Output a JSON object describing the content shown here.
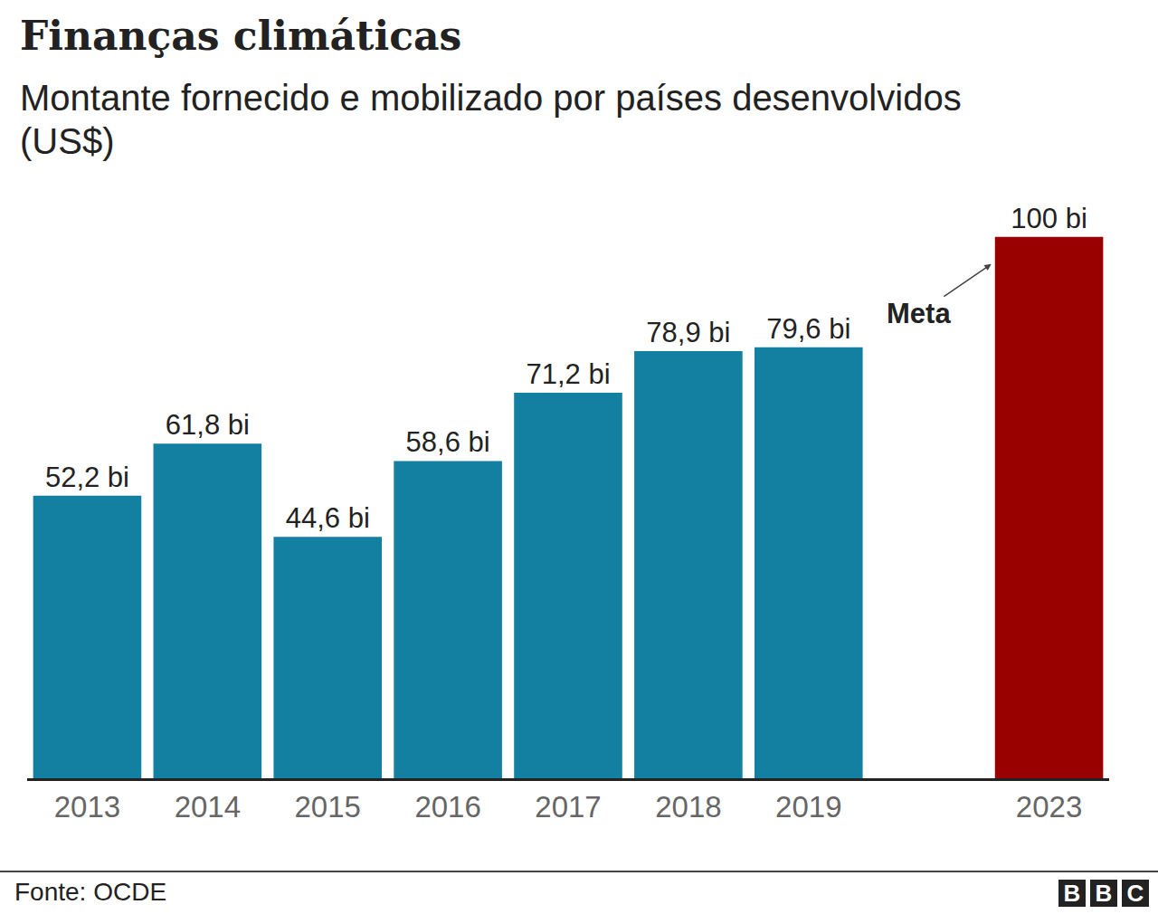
{
  "chart_data": {
    "type": "bar",
    "title": "Finanças climáticas",
    "subtitle": "Montante fornecido e mobilizado por países desenvolvidos (US$)",
    "categories": [
      "2013",
      "2014",
      "2015",
      "2016",
      "2017",
      "2018",
      "2019",
      null,
      "2023"
    ],
    "values": [
      52.2,
      61.8,
      44.6,
      58.6,
      71.2,
      78.9,
      79.6,
      null,
      100
    ],
    "value_labels": [
      "52,2 bi",
      "61,8 bi",
      "44,6 bi",
      "58,6 bi",
      "71,2 bi",
      "78,9 bi",
      "79,6 bi",
      null,
      "100 bi"
    ],
    "colors": [
      "#1380a1",
      "#1380a1",
      "#1380a1",
      "#1380a1",
      "#1380a1",
      "#1380a1",
      "#1380a1",
      null,
      "#990000"
    ],
    "data_labels": true,
    "tick_labels": "x",
    "ylim": [
      0,
      110
    ],
    "grid": false,
    "annotations": [
      {
        "text": "Meta"
      }
    ],
    "source": "Fonte: OCDE",
    "logo": "BBC"
  }
}
